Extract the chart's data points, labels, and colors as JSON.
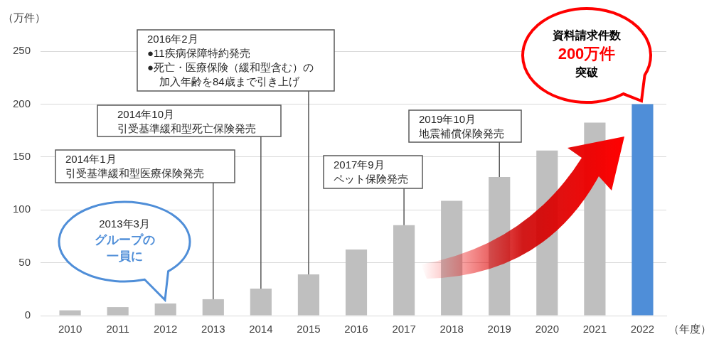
{
  "chart_data": {
    "type": "bar",
    "ylabel": "（万件）",
    "xlabel": "（年度）",
    "categories": [
      "2010",
      "2011",
      "2012",
      "2013",
      "2014",
      "2015",
      "2016",
      "2017",
      "2018",
      "2019",
      "2020",
      "2021",
      "2022"
    ],
    "values": [
      5,
      8,
      11.5,
      15.5,
      25.5,
      39,
      62.5,
      85.5,
      108.5,
      131,
      156,
      182.5,
      200
    ],
    "colors": [
      "#bfbfbf",
      "#bfbfbf",
      "#bfbfbf",
      "#bfbfbf",
      "#bfbfbf",
      "#bfbfbf",
      "#bfbfbf",
      "#bfbfbf",
      "#bfbfbf",
      "#bfbfbf",
      "#bfbfbf",
      "#bfbfbf",
      "#4f8ed8"
    ],
    "ylim": [
      0,
      250
    ],
    "yticks": [
      0,
      50,
      100,
      150,
      200,
      250
    ],
    "grid": "y",
    "legend": false,
    "annotations": [
      "2016年2月",
      "●11疾病保障特約発売",
      {
        "text": "●死亡・医療保険（緩和型含む）の加入年齢を84歳まで引き上げ",
        "x": "2015",
        "y": 39
      },
      "2014年10月",
      {
        "text": "引受基準緩和型死亡保険発売",
        "x": "2014",
        "y": 25.5
      },
      "2014年1月",
      {
        "text": "引受基準緩和型医療保険発売",
        "x": "2013",
        "y": 15.5
      },
      "2017年9月",
      {
        "text": "ペット保険発売",
        "x": "2017",
        "y": 85.5
      },
      "2019年10月",
      {
        "text": "地震補償保険発売",
        "x": "2019",
        "y": 131
      },
      "2013年3月",
      "グループの一員に",
      "資料請求件数",
      "200万件",
      "突破"
    ]
  }
}
